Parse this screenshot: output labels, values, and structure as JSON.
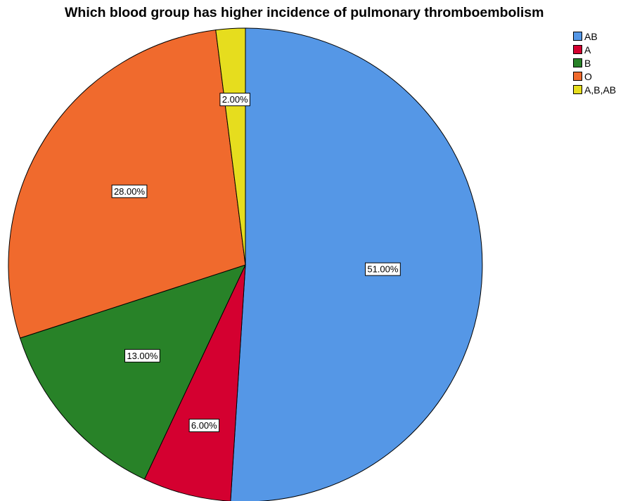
{
  "chart_data": {
    "type": "pie",
    "title": "Which blood group has higher incidence of pulmonary thromboembolism",
    "categories": [
      "AB",
      "A",
      "B",
      "O",
      "A,B,AB"
    ],
    "values": [
      51,
      6,
      13,
      28,
      2
    ],
    "labels": [
      "51.00%",
      "6.00%",
      "13.00%",
      "28.00%",
      "2.00%"
    ],
    "colors": [
      "#5597E6",
      "#D40030",
      "#288228",
      "#F06A2D",
      "#E6DD1E"
    ],
    "legend_position": "top-right",
    "start_angle": "12 o'clock",
    "direction": "clockwise"
  }
}
